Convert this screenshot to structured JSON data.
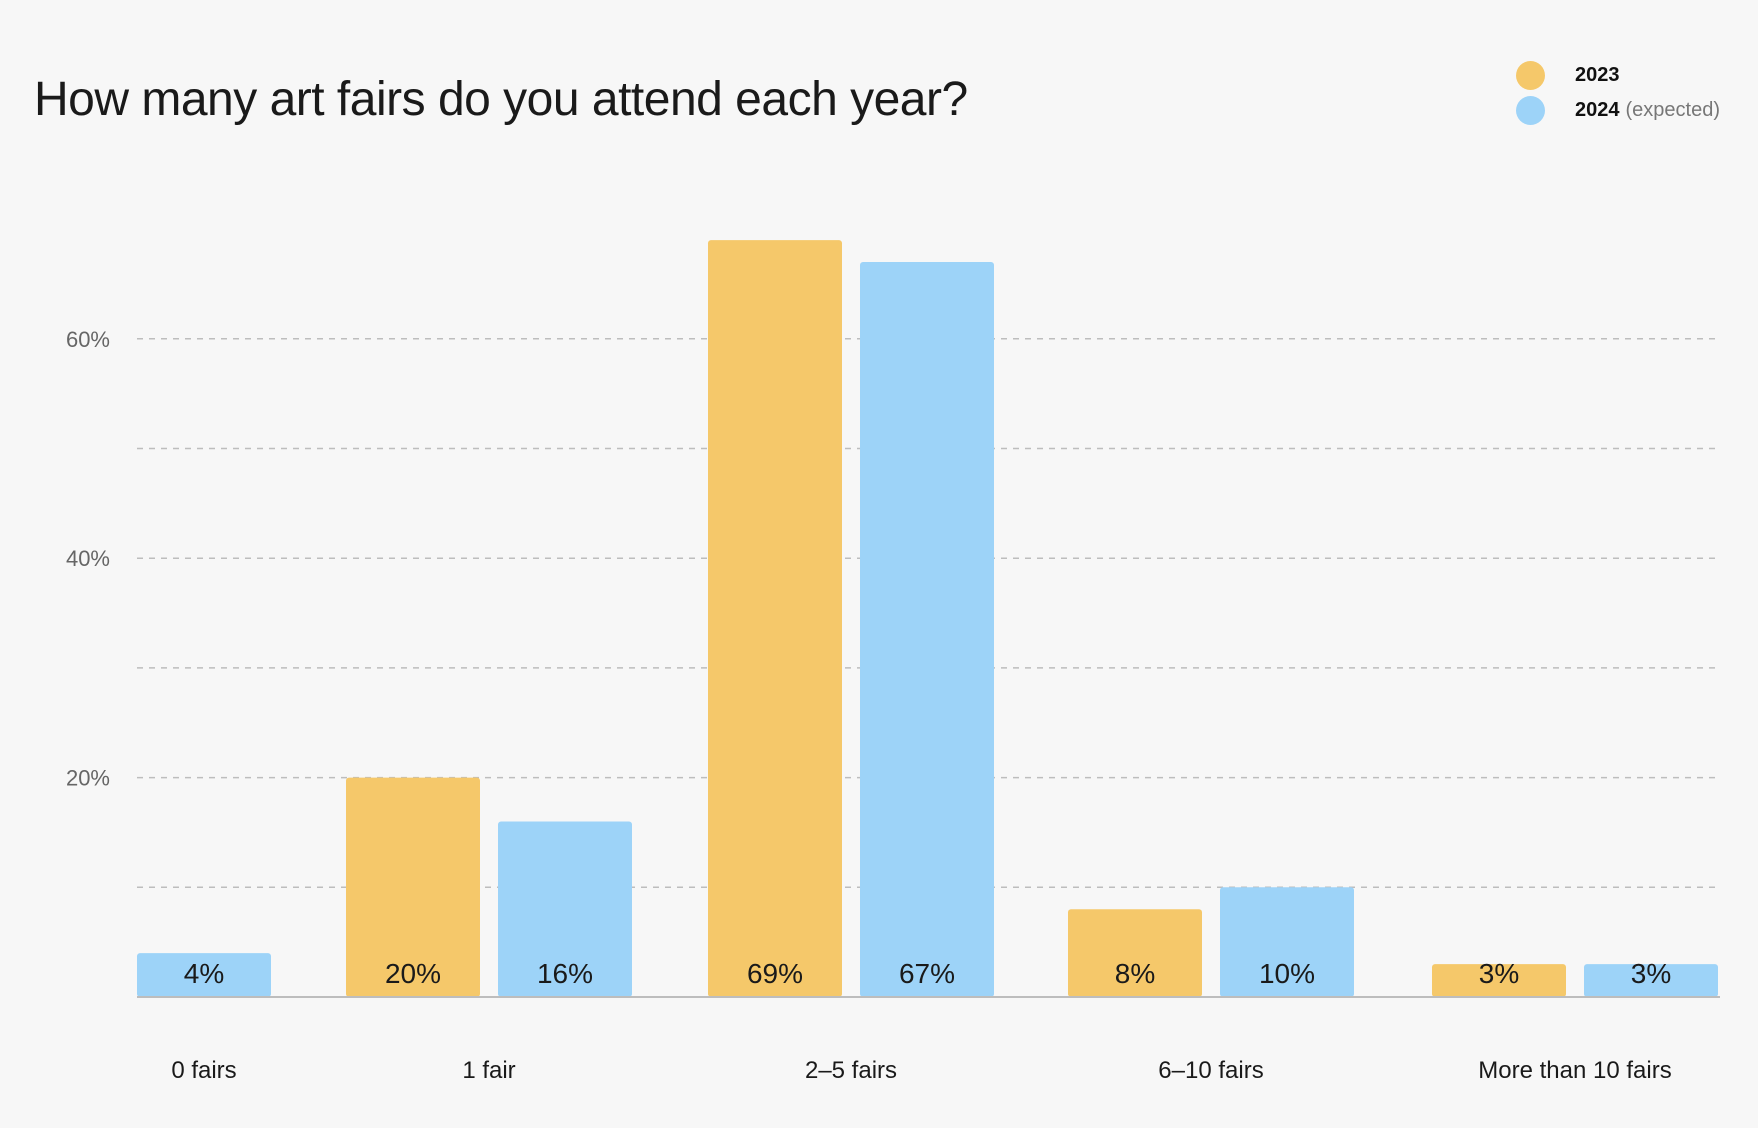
{
  "chart_data": {
    "type": "bar",
    "title": "How many art fairs do you attend each year?",
    "xlabel": "",
    "ylabel": "",
    "ylim": [
      0,
      70
    ],
    "yticks": [
      0,
      10,
      20,
      30,
      40,
      50,
      60
    ],
    "ytick_labels": [
      {
        "value": 20,
        "label": "20%"
      },
      {
        "value": 40,
        "label": "40%"
      },
      {
        "value": 60,
        "label": "60%"
      }
    ],
    "grid": "horizontal-dashed",
    "legend_position": "top-right",
    "categories": [
      "0 fairs",
      "1 fair",
      "2–5 fairs",
      "6–10 fairs",
      "More than 10 fairs"
    ],
    "series": [
      {
        "name": "2023",
        "note": "",
        "color": "#f5c86a",
        "values": [
          null,
          20,
          69,
          8,
          3
        ],
        "labels": [
          "",
          "20%",
          "69%",
          "8%",
          "3%"
        ]
      },
      {
        "name": "2024",
        "note": "(expected)",
        "color": "#9dd3f8",
        "values": [
          4,
          16,
          67,
          10,
          3
        ],
        "labels": [
          "4%",
          "16%",
          "67%",
          "10%",
          "3%"
        ]
      }
    ]
  }
}
